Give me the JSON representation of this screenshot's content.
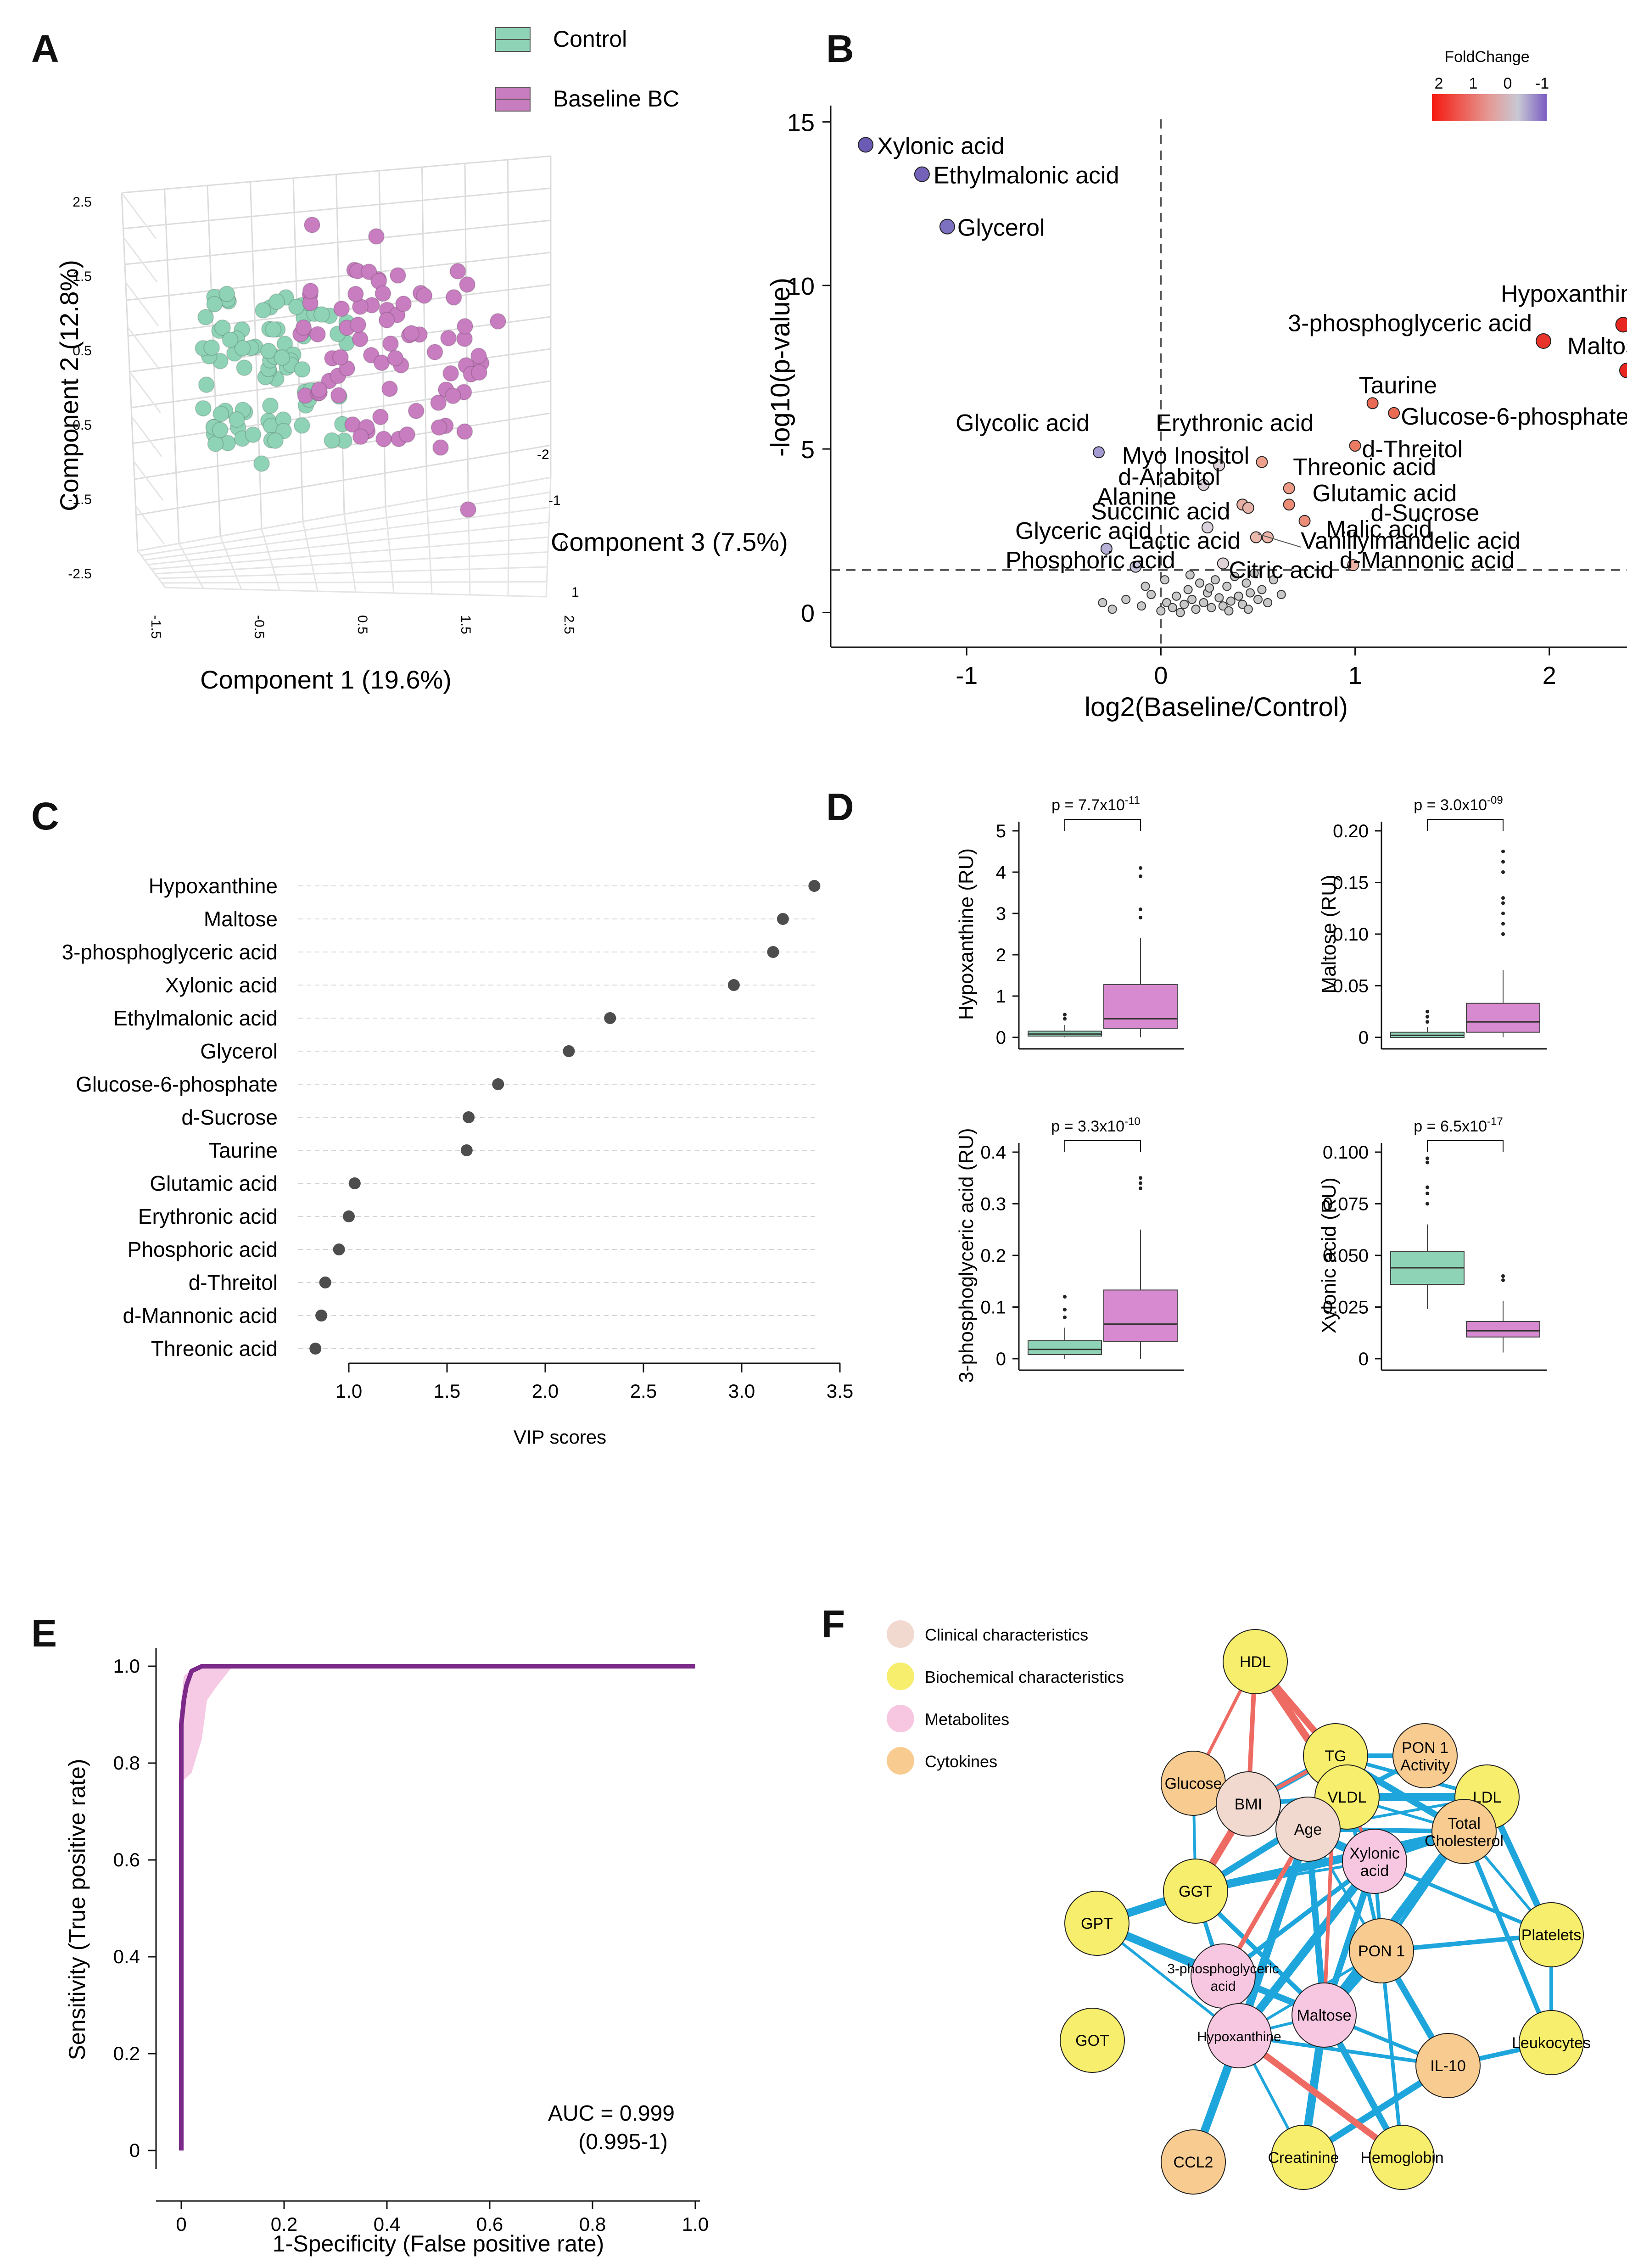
{
  "panels": {
    "A": "A",
    "B": "B",
    "C": "C",
    "D": "D",
    "E": "E",
    "F": "F"
  },
  "chart_data": [
    {
      "panel": "A",
      "type": "scatter",
      "subtype": "3d-pca",
      "xlabel": "Component 1 (19.6%)",
      "ylabel": "Component 2 (12.8%)",
      "zlabel": "Component 3 (7.5%)",
      "x_ticks": [
        "-1.5",
        "-0.5",
        "0.5",
        "1.5",
        "2.5"
      ],
      "y_ticks": [
        "2.5",
        "1.5",
        "0.5",
        "-0.5",
        "-1.5",
        "-2.5"
      ],
      "z_ticks": [
        "-2",
        "-1",
        "0",
        "1"
      ],
      "legend": [
        {
          "label": "Control",
          "color": "#8fd3b6"
        },
        {
          "label": "Baseline BC",
          "color": "#c77dbf"
        }
      ]
    },
    {
      "panel": "B",
      "type": "scatter",
      "subtype": "volcano",
      "xlabel": "log2(Baseline/Control)",
      "ylabel": "-log10(p-value)",
      "xlim": [
        -1.7,
        2.4
      ],
      "ylim": [
        -0.5,
        15.5
      ],
      "x_ticks": [
        "-1",
        "0",
        "1",
        "2"
      ],
      "y_ticks": [
        "0",
        "5",
        "10",
        "15"
      ],
      "threshold_y": 1.3,
      "threshold_x": 0,
      "legend_title": "FoldChange",
      "legend_ticks": [
        "2",
        "1",
        "0",
        "-1"
      ],
      "labeled_points": [
        {
          "name": "Xylonic acid",
          "x": -1.52,
          "y": 14.3,
          "color": "#6b5bb5"
        },
        {
          "name": "Ethylmalonic acid",
          "x": -1.23,
          "y": 13.4,
          "color": "#7462b8"
        },
        {
          "name": "Glycerol",
          "x": -1.1,
          "y": 11.8,
          "color": "#7c70c0"
        },
        {
          "name": "Hypoxanthine",
          "x": 2.38,
          "y": 8.8,
          "color": "#e8261f"
        },
        {
          "name": "3-phosphoglyceric acid",
          "x": 1.97,
          "y": 8.3,
          "color": "#e8342a"
        },
        {
          "name": "Maltose",
          "x": 2.4,
          "y": 7.4,
          "color": "#e8261f"
        },
        {
          "name": "Taurine",
          "x": 1.09,
          "y": 6.4,
          "color": "#ea6b55"
        },
        {
          "name": "Glucose-6-phosphate",
          "x": 1.2,
          "y": 6.1,
          "color": "#ea6a53"
        },
        {
          "name": "Glycolic acid",
          "x": -0.32,
          "y": 4.9,
          "color": "#a49bd2"
        },
        {
          "name": "Erythronic acid",
          "x": 0.52,
          "y": 4.6,
          "color": "#eca08c"
        },
        {
          "name": "d-Threitol",
          "x": 1.0,
          "y": 5.1,
          "color": "#ea7a62"
        },
        {
          "name": "Myo Inositol",
          "x": 0.3,
          "y": 4.5,
          "color": "#ddd0d8"
        },
        {
          "name": "Threonic acid",
          "x": 0.66,
          "y": 3.8,
          "color": "#ec9a86"
        },
        {
          "name": "d-Arabitol",
          "x": 0.22,
          "y": 3.9,
          "color": "#d9cdd6"
        },
        {
          "name": "Glutamic acid",
          "x": 0.66,
          "y": 3.3,
          "color": "#ec8c76"
        },
        {
          "name": "Alanine",
          "x": 0.42,
          "y": 3.3,
          "color": "#e8b0a4"
        },
        {
          "name": "d-Sucrose",
          "x": 0.74,
          "y": 2.8,
          "color": "#eb8d78"
        },
        {
          "name": "Succinic acid",
          "x": 0.45,
          "y": 3.2,
          "color": "#e6b3a9"
        },
        {
          "name": "Malic acid",
          "x": 0.49,
          "y": 2.3,
          "color": "#ebb8ac"
        },
        {
          "name": "Glyceric acid",
          "x": -0.28,
          "y": 1.95,
          "color": "#b7b1d8"
        },
        {
          "name": "Lactic acid",
          "x": 0.24,
          "y": 2.6,
          "color": "#d9d2dc"
        },
        {
          "name": "Vanillylmandelic acid",
          "x": 0.55,
          "y": 2.3,
          "color": "#ecb5a8"
        },
        {
          "name": "Phosphoric acid",
          "x": -0.13,
          "y": 1.4,
          "color": "#c8c3dc"
        },
        {
          "name": "Citric acid",
          "x": 0.32,
          "y": 1.5,
          "color": "#e0d3d8"
        },
        {
          "name": "d-Mannonic acid",
          "x": 0.99,
          "y": 1.45,
          "color": "#ebb3a6"
        }
      ],
      "nonsignificant_points": [
        [
          -0.3,
          0.3
        ],
        [
          -0.25,
          0.1
        ],
        [
          -0.18,
          0.4
        ],
        [
          -0.1,
          0.2
        ],
        [
          -0.05,
          0.55
        ],
        [
          0.0,
          0.05
        ],
        [
          0.03,
          0.3
        ],
        [
          0.06,
          0.15
        ],
        [
          0.08,
          0.5
        ],
        [
          0.1,
          0.0
        ],
        [
          0.12,
          0.25
        ],
        [
          0.14,
          0.7
        ],
        [
          0.16,
          0.4
        ],
        [
          0.18,
          0.1
        ],
        [
          0.2,
          0.9
        ],
        [
          0.22,
          0.3
        ],
        [
          0.24,
          0.6
        ],
        [
          0.26,
          0.15
        ],
        [
          0.28,
          1.0
        ],
        [
          0.3,
          0.45
        ],
        [
          0.32,
          0.2
        ],
        [
          0.34,
          0.8
        ],
        [
          0.36,
          0.35
        ],
        [
          0.38,
          1.1
        ],
        [
          0.4,
          0.5
        ],
        [
          0.42,
          0.25
        ],
        [
          0.44,
          0.9
        ],
        [
          0.46,
          0.6
        ],
        [
          0.48,
          1.2
        ],
        [
          0.5,
          0.4
        ],
        [
          0.52,
          0.7
        ],
        [
          0.55,
          0.3
        ],
        [
          0.58,
          1.0
        ],
        [
          0.62,
          0.55
        ],
        [
          -0.08,
          0.8
        ],
        [
          0.02,
          1.0
        ],
        [
          0.15,
          1.15
        ],
        [
          0.25,
          0.75
        ],
        [
          0.35,
          0.05
        ],
        [
          0.45,
          0.1
        ]
      ]
    },
    {
      "panel": "C",
      "type": "scatter",
      "subtype": "dot-plot",
      "xlabel": "VIP scores",
      "xlim": [
        0.8,
        3.5
      ],
      "x_ticks": [
        "1.0",
        "1.5",
        "2.0",
        "2.5",
        "3.0",
        "3.5"
      ],
      "categories": [
        "Hypoxanthine",
        "Maltose",
        "3-phosphoglyceric acid",
        "Xylonic acid",
        "Ethylmalonic acid",
        "Glycerol",
        "Glucose-6-phosphate",
        "d-Sucrose",
        "Taurine",
        "Glutamic acid",
        "Erythronic acid",
        "Phosphoric acid",
        "d-Threitol",
        "d-Mannonic acid",
        "Threonic acid"
      ],
      "values": [
        3.37,
        3.21,
        3.16,
        2.96,
        2.33,
        2.12,
        1.76,
        1.61,
        1.6,
        1.03,
        1.0,
        0.95,
        0.88,
        0.86,
        0.83
      ]
    },
    {
      "panel": "D",
      "type": "box",
      "groups": [
        "Control",
        "Baseline BC"
      ],
      "subplots": [
        {
          "ylabel": "Hypoxanthine (RU)",
          "p_base": "p  = 7.7x10",
          "p_exp": "-11",
          "ylim": [
            0,
            5
          ],
          "y_ticks": [
            "0",
            "1",
            "2",
            "3",
            "4",
            "5"
          ],
          "control": {
            "q1": 0.03,
            "median": 0.08,
            "q3": 0.15,
            "whislo": 0,
            "whishi": 0.3,
            "outliers": [
              0.45,
              0.55
            ]
          },
          "baseline": {
            "q1": 0.22,
            "median": 0.45,
            "q3": 1.28,
            "whislo": 0,
            "whishi": 2.4,
            "outliers": [
              2.9,
              3.1,
              3.9,
              4.1
            ]
          }
        },
        {
          "ylabel": "Maltose (RU)",
          "p_base": "p  = 3.0x10",
          "p_exp": "-09",
          "ylim": [
            0,
            0.2
          ],
          "y_ticks": [
            "0",
            "0.05",
            "0.10",
            "0.15",
            "0.20"
          ],
          "control": {
            "q1": 0.0,
            "median": 0.002,
            "q3": 0.005,
            "whislo": 0,
            "whishi": 0.01,
            "outliers": [
              0.015,
              0.02,
              0.025
            ]
          },
          "baseline": {
            "q1": 0.005,
            "median": 0.015,
            "q3": 0.033,
            "whislo": 0,
            "whishi": 0.065,
            "outliers": [
              0.1,
              0.11,
              0.12,
              0.13,
              0.135,
              0.16,
              0.17,
              0.18
            ]
          }
        },
        {
          "ylabel": "3-phosphoglyceric acid (RU)",
          "p_base": "p  = 3.3x10",
          "p_exp": "-10",
          "ylim": [
            0,
            0.4
          ],
          "y_ticks": [
            "0",
            "0.1",
            "0.2",
            "0.3",
            "0.4"
          ],
          "control": {
            "q1": 0.008,
            "median": 0.018,
            "q3": 0.035,
            "whislo": 0,
            "whishi": 0.06,
            "outliers": [
              0.08,
              0.095,
              0.12
            ]
          },
          "baseline": {
            "q1": 0.033,
            "median": 0.067,
            "q3": 0.133,
            "whislo": 0.0,
            "whishi": 0.25,
            "outliers": [
              0.33,
              0.34,
              0.35
            ]
          }
        },
        {
          "ylabel": "Xylonic acid (RU)",
          "p_base": "p  = 6.5x10",
          "p_exp": "-17",
          "ylim": [
            0,
            0.1
          ],
          "y_ticks": [
            "0",
            "0.025",
            "0.050",
            "0.075",
            "0.100"
          ],
          "control": {
            "q1": 0.036,
            "median": 0.044,
            "q3": 0.052,
            "whislo": 0.024,
            "whishi": 0.065,
            "outliers": [
              0.075,
              0.08,
              0.083,
              0.095,
              0.097
            ]
          },
          "baseline": {
            "q1": 0.0105,
            "median": 0.0135,
            "q3": 0.018,
            "whislo": 0.003,
            "whishi": 0.028,
            "outliers": [
              0.038,
              0.04
            ]
          }
        }
      ]
    },
    {
      "panel": "E",
      "type": "line",
      "subtype": "roc",
      "xlabel": "1-Specificity (False positive rate)",
      "ylabel": "Sensitivity (True positive rate)",
      "xlim": [
        0,
        1
      ],
      "ylim": [
        0,
        1
      ],
      "x_ticks": [
        "0",
        "0.2",
        "0.4",
        "0.6",
        "0.8",
        "1.0"
      ],
      "y_ticks": [
        "0",
        "0.2",
        "0.4",
        "0.6",
        "0.8",
        "1.0"
      ],
      "x": [
        0,
        0.0,
        0.0,
        0.005,
        0.01,
        0.02,
        0.04,
        0.06,
        1.0
      ],
      "y": [
        0,
        0.78,
        0.88,
        0.93,
        0.96,
        0.99,
        1.0,
        1.0,
        1.0
      ],
      "ci_upper_x": [
        0,
        0.0,
        0.005,
        0.03,
        0.1,
        0.16
      ],
      "ci_upper_y": [
        0.8,
        0.93,
        0.98,
        1.0,
        1.0,
        1.0
      ],
      "ci_lower_x": [
        0.16,
        0.1,
        0.07,
        0.05,
        0.04,
        0.02,
        0.0
      ],
      "ci_lower_y": [
        1.0,
        1.0,
        0.96,
        0.93,
        0.85,
        0.78,
        0.76
      ],
      "auc_text": "AUC = 0.999",
      "ci_text": "(0.995-1)",
      "line_color": "#7b2a8a",
      "ci_color": "#f5bfe0"
    },
    {
      "panel": "F",
      "type": "network",
      "legend": [
        {
          "label": "Clinical characteristics",
          "color": "#f1d9d0"
        },
        {
          "label": "Biochemical characteristics",
          "color": "#f6ee6c"
        },
        {
          "label": "Metabolites",
          "color": "#f7c7e2"
        },
        {
          "label": "Cytokines",
          "color": "#f8cc90"
        }
      ],
      "nodes": [
        {
          "id": "HDL",
          "label": [
            "HDL"
          ],
          "cat": 1
        },
        {
          "id": "TG",
          "label": [
            "TG"
          ],
          "cat": 1
        },
        {
          "id": "PON1A",
          "label": [
            "PON 1",
            "Activity"
          ],
          "cat": 3
        },
        {
          "id": "Glucose",
          "label": [
            "Glucose"
          ],
          "cat": 3
        },
        {
          "id": "BMI",
          "label": [
            "BMI"
          ],
          "cat": 0
        },
        {
          "id": "VLDL",
          "label": [
            "VLDL"
          ],
          "cat": 1
        },
        {
          "id": "LDL",
          "label": [
            "LDL"
          ],
          "cat": 1
        },
        {
          "id": "Age",
          "label": [
            "Age"
          ],
          "cat": 0
        },
        {
          "id": "TC",
          "label": [
            "Total",
            "Cholesterol"
          ],
          "cat": 3
        },
        {
          "id": "GGT",
          "label": [
            "GGT"
          ],
          "cat": 1
        },
        {
          "id": "Xyl",
          "label": [
            "Xylonic",
            "acid"
          ],
          "cat": 2
        },
        {
          "id": "GPT",
          "label": [
            "GPT"
          ],
          "cat": 1
        },
        {
          "id": "Plt",
          "label": [
            "Platelets"
          ],
          "cat": 1
        },
        {
          "id": "PON1",
          "label": [
            "PON 1"
          ],
          "cat": 3
        },
        {
          "id": "3PG",
          "label": [
            "3-phosphoglyceric",
            "acid"
          ],
          "cat": 2
        },
        {
          "id": "Malt",
          "label": [
            "Maltose"
          ],
          "cat": 2
        },
        {
          "id": "Hyp",
          "label": [
            "Hypoxanthine"
          ],
          "cat": 2
        },
        {
          "id": "GOT",
          "label": [
            "GOT"
          ],
          "cat": 1
        },
        {
          "id": "Leu",
          "label": [
            "Leukocytes"
          ],
          "cat": 1
        },
        {
          "id": "IL10",
          "label": [
            "IL-10"
          ],
          "cat": 3
        },
        {
          "id": "CCL2",
          "label": [
            "CCL2"
          ],
          "cat": 3
        },
        {
          "id": "Crea",
          "label": [
            "Creatinine"
          ],
          "cat": 1
        },
        {
          "id": "Hb",
          "label": [
            "Hemoglobin"
          ],
          "cat": 1
        }
      ],
      "edges_positive": [
        [
          "HDL",
          "Glucose"
        ],
        [
          "HDL",
          "BMI"
        ],
        [
          "HDL",
          "TG"
        ],
        [
          "TG",
          "BMI"
        ],
        [
          "HDL",
          "VLDL"
        ],
        [
          "Xyl",
          "VLDL"
        ],
        [
          "3PG",
          "Age"
        ],
        [
          "Hyp",
          "Hb"
        ],
        [
          "Malt",
          "TG"
        ],
        [
          "BMI",
          "GGT"
        ]
      ],
      "edges_negative": [
        [
          "TG",
          "VLDL"
        ],
        [
          "TG",
          "LDL"
        ],
        [
          "TG",
          "PON1A"
        ],
        [
          "TG",
          "TC"
        ],
        [
          "VLDL",
          "LDL"
        ],
        [
          "VLDL",
          "TC"
        ],
        [
          "VLDL",
          "Xyl"
        ],
        [
          "PON1A",
          "VLDL"
        ],
        [
          "LDL",
          "TC"
        ],
        [
          "Glucose",
          "BMI"
        ],
        [
          "Glucose",
          "GGT"
        ],
        [
          "BMI",
          "Age"
        ],
        [
          "BMI",
          "VLDL"
        ],
        [
          "BMI",
          "TG"
        ],
        [
          "GGT",
          "GPT"
        ],
        [
          "GGT",
          "3PG"
        ],
        [
          "GGT",
          "Hyp"
        ],
        [
          "GGT",
          "Malt"
        ],
        [
          "GGT",
          "VLDL"
        ],
        [
          "GGT",
          "TC"
        ],
        [
          "GGT",
          "Xyl"
        ],
        [
          "Age",
          "VLDL"
        ],
        [
          "Age",
          "TC"
        ],
        [
          "Age",
          "Malt"
        ],
        [
          "Age",
          "Hyp"
        ],
        [
          "Age",
          "LDL"
        ],
        [
          "Xyl",
          "PON1"
        ],
        [
          "Xyl",
          "TC"
        ],
        [
          "Xyl",
          "Malt"
        ],
        [
          "Xyl",
          "Hyp"
        ],
        [
          "TC",
          "Plt"
        ],
        [
          "TC",
          "PON1"
        ],
        [
          "TC",
          "Leu"
        ],
        [
          "LDL",
          "Plt"
        ],
        [
          "LDL",
          "Malt"
        ],
        [
          "LDL",
          "PON1"
        ],
        [
          "Plt",
          "Leu"
        ],
        [
          "Plt",
          "PON1"
        ],
        [
          "PON1",
          "IL10"
        ],
        [
          "PON1",
          "Malt"
        ],
        [
          "PON1",
          "Hyp"
        ],
        [
          "PON1",
          "Hb"
        ],
        [
          "3PG",
          "Malt"
        ],
        [
          "3PG",
          "Hyp"
        ],
        [
          "3PG",
          "GPT"
        ],
        [
          "Malt",
          "Hyp"
        ],
        [
          "Malt",
          "IL10"
        ],
        [
          "Malt",
          "Crea"
        ],
        [
          "Malt",
          "Hb"
        ],
        [
          "Hyp",
          "CCL2"
        ],
        [
          "Hyp",
          "Crea"
        ],
        [
          "Hyp",
          "IL10"
        ],
        [
          "IL10",
          "Leu"
        ],
        [
          "IL10",
          "Crea"
        ],
        [
          "Crea",
          "Malt"
        ],
        [
          "Age",
          "IL10"
        ],
        [
          "VLDL",
          "PON1"
        ],
        [
          "3PG",
          "Xyl"
        ],
        [
          "GPT",
          "Malt"
        ],
        [
          "BMI",
          "Xyl"
        ],
        [
          "Hyp",
          "GPT"
        ],
        [
          "Plt",
          "Xyl"
        ]
      ]
    }
  ]
}
